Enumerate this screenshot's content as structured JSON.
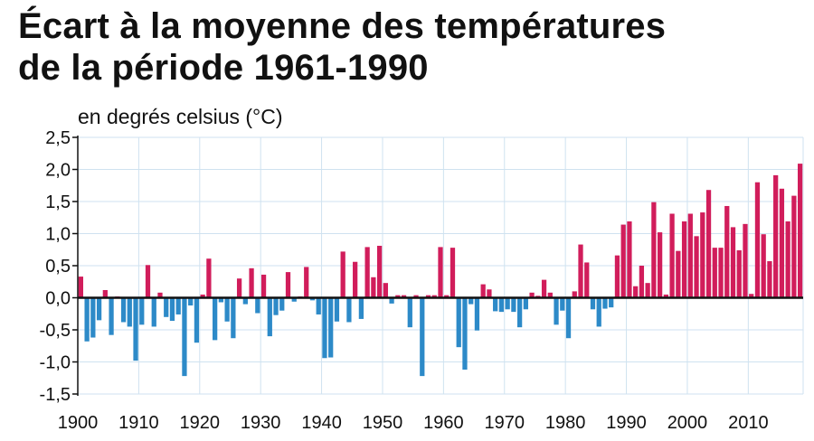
{
  "chart_data": {
    "type": "bar",
    "title": [
      "Écart à la moyenne des températures",
      "de la période 1961-1990"
    ],
    "ylabel": "en degrés celsius (°C)",
    "xlabel": "",
    "ylim": [
      -1.5,
      2.5
    ],
    "ytick_labels": [
      "2,5",
      "2,0",
      "1,5",
      "1,0",
      "0,5",
      "0,0",
      "-0,5",
      "-1,0",
      "-1,5"
    ],
    "ytick_values": [
      2.5,
      2.0,
      1.5,
      1.0,
      0.5,
      0.0,
      -0.5,
      -1.0,
      -1.5
    ],
    "xtick_labels": [
      "1900",
      "1910",
      "1920",
      "1930",
      "1940",
      "1950",
      "1960",
      "1970",
      "1980",
      "1990",
      "2000",
      "2010"
    ],
    "xtick_values": [
      1900,
      1910,
      1920,
      1930,
      1940,
      1950,
      1960,
      1970,
      1980,
      1990,
      2000,
      2010
    ],
    "grid": true,
    "colors": {
      "positive": "#d11d5b",
      "negative": "#2d8ac8",
      "grid": "#cfe2f0",
      "axis": "#111111"
    },
    "years": [
      1900,
      1901,
      1902,
      1903,
      1904,
      1905,
      1906,
      1907,
      1908,
      1909,
      1910,
      1911,
      1912,
      1913,
      1914,
      1915,
      1916,
      1917,
      1918,
      1919,
      1920,
      1921,
      1922,
      1923,
      1924,
      1925,
      1926,
      1927,
      1928,
      1929,
      1930,
      1931,
      1932,
      1933,
      1934,
      1935,
      1936,
      1937,
      1938,
      1939,
      1940,
      1941,
      1942,
      1943,
      1944,
      1945,
      1946,
      1947,
      1948,
      1949,
      1950,
      1951,
      1952,
      1953,
      1954,
      1955,
      1956,
      1957,
      1958,
      1959,
      1960,
      1961,
      1962,
      1963,
      1964,
      1965,
      1966,
      1967,
      1968,
      1969,
      1970,
      1971,
      1972,
      1973,
      1974,
      1975,
      1976,
      1977,
      1978,
      1979,
      1980,
      1981,
      1982,
      1983,
      1984,
      1985,
      1986,
      1987,
      1988,
      1989,
      1990,
      1991,
      1992,
      1993,
      1994,
      1995,
      1996,
      1997,
      1998,
      1999,
      2000,
      2001,
      2002,
      2003,
      2004,
      2005,
      2006,
      2007,
      2008,
      2009,
      2010,
      2011,
      2012,
      2013,
      2014,
      2015,
      2016,
      2017,
      2018
    ],
    "values": [
      0.33,
      -0.68,
      -0.62,
      -0.35,
      0.12,
      -0.58,
      0.02,
      -0.38,
      -0.45,
      -0.98,
      -0.42,
      0.51,
      -0.45,
      0.08,
      -0.3,
      -0.36,
      -0.26,
      -1.22,
      -0.12,
      -0.7,
      0.05,
      0.61,
      -0.66,
      -0.07,
      -0.37,
      -0.63,
      0.3,
      -0.1,
      0.46,
      -0.24,
      0.36,
      -0.6,
      -0.27,
      -0.2,
      0.4,
      -0.06,
      0.02,
      0.48,
      -0.04,
      -0.26,
      -0.94,
      -0.93,
      -0.37,
      0.72,
      -0.38,
      0.56,
      -0.33,
      0.79,
      0.32,
      0.81,
      0.23,
      -0.09,
      0.04,
      0.04,
      -0.46,
      0.04,
      -1.22,
      0.04,
      0.04,
      0.79,
      0.04,
      0.78,
      -0.77,
      -1.12,
      -0.1,
      -0.51,
      0.21,
      0.13,
      -0.21,
      -0.22,
      -0.18,
      -0.22,
      -0.46,
      -0.18,
      0.08,
      0.03,
      0.28,
      0.08,
      -0.42,
      -0.2,
      -0.63,
      0.1,
      0.83,
      0.55,
      -0.18,
      -0.45,
      -0.17,
      -0.15,
      0.66,
      1.14,
      1.19,
      0.18,
      0.5,
      0.23,
      1.49,
      1.02,
      0.05,
      1.31,
      0.73,
      1.19,
      1.31,
      0.96,
      1.33,
      1.68,
      0.78,
      0.78,
      1.43,
      1.1,
      0.74,
      1.15,
      0.06,
      1.8,
      0.99,
      0.57,
      1.91,
      1.7,
      1.19,
      1.59,
      2.09
    ]
  }
}
